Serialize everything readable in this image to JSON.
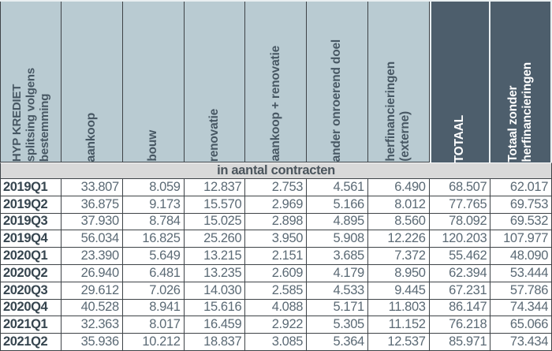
{
  "colors": {
    "header_bg": "#b9cbd2",
    "dark_bg": "#4d5e6c",
    "band_bg": "#d9d9d9",
    "border": "#3e4347",
    "num_text": "#5b6a75",
    "label_text": "#36454f",
    "header_text": "#475763"
  },
  "table": {
    "corner_header": "HYP KREDIET\nsplitsing volgens\nbestemming",
    "section_title": "in aantal contracten",
    "columns": [
      {
        "label": "aankoop",
        "dark": false
      },
      {
        "label": "bouw",
        "dark": false
      },
      {
        "label": "renovatie",
        "dark": false
      },
      {
        "label": "aankoop + renovatie",
        "dark": false
      },
      {
        "label": "ander onroerend doel",
        "dark": false
      },
      {
        "label": "herfinancieringen\n(externe)",
        "dark": false
      },
      {
        "label": "TOTAAL",
        "dark": true
      },
      {
        "label": "Totaal zonder\nherfinancieringen",
        "dark": true
      }
    ],
    "rows": [
      {
        "label": "2019Q1",
        "values": [
          "33.807",
          "8.059",
          "12.837",
          "2.753",
          "4.561",
          "6.490",
          "68.507",
          "62.017"
        ]
      },
      {
        "label": "2019Q2",
        "values": [
          "36.875",
          "9.173",
          "15.570",
          "2.969",
          "5.166",
          "8.012",
          "77.765",
          "69.753"
        ]
      },
      {
        "label": "2019Q3",
        "values": [
          "37.930",
          "8.784",
          "15.025",
          "2.898",
          "4.895",
          "8.560",
          "78.092",
          "69.532"
        ]
      },
      {
        "label": "2019Q4",
        "values": [
          "56.034",
          "16.825",
          "25.260",
          "3.950",
          "5.908",
          "12.226",
          "120.203",
          "107.977"
        ]
      },
      {
        "label": "2020Q1",
        "values": [
          "23.390",
          "5.649",
          "13.215",
          "2.151",
          "3.685",
          "7.372",
          "55.462",
          "48.090"
        ]
      },
      {
        "label": "2020Q2",
        "values": [
          "26.940",
          "6.481",
          "13.235",
          "2.609",
          "4.179",
          "8.950",
          "62.394",
          "53.444"
        ]
      },
      {
        "label": "2020Q3",
        "values": [
          "29.612",
          "7.026",
          "14.030",
          "2.585",
          "4.533",
          "9.445",
          "67.231",
          "57.786"
        ]
      },
      {
        "label": "2020Q4",
        "values": [
          "40.528",
          "8.941",
          "15.616",
          "4.088",
          "5.171",
          "11.803",
          "86.147",
          "74.344"
        ]
      },
      {
        "label": "2021Q1",
        "values": [
          "32.363",
          "8.017",
          "16.459",
          "2.922",
          "5.305",
          "11.152",
          "76.218",
          "65.066"
        ]
      },
      {
        "label": "2021Q2",
        "values": [
          "35.936",
          "10.212",
          "18.837",
          "3.085",
          "5.364",
          "12.537",
          "85.971",
          "73.434"
        ]
      }
    ]
  },
  "chart_data": {
    "type": "table",
    "title": "HYP KREDIET splitsing volgens bestemming — in aantal contracten",
    "categories": [
      "2019Q1",
      "2019Q2",
      "2019Q3",
      "2019Q4",
      "2020Q1",
      "2020Q2",
      "2020Q3",
      "2020Q4",
      "2021Q1",
      "2021Q2"
    ],
    "series": [
      {
        "name": "aankoop",
        "values": [
          33807,
          36875,
          37930,
          56034,
          23390,
          26940,
          29612,
          40528,
          32363,
          35936
        ]
      },
      {
        "name": "bouw",
        "values": [
          8059,
          9173,
          8784,
          16825,
          5649,
          6481,
          7026,
          8941,
          8017,
          10212
        ]
      },
      {
        "name": "renovatie",
        "values": [
          12837,
          15570,
          15025,
          25260,
          13215,
          13235,
          14030,
          15616,
          16459,
          18837
        ]
      },
      {
        "name": "aankoop + renovatie",
        "values": [
          2753,
          2969,
          2898,
          3950,
          2151,
          2609,
          2585,
          4088,
          2922,
          3085
        ]
      },
      {
        "name": "ander onroerend doel",
        "values": [
          4561,
          5166,
          4895,
          5908,
          3685,
          4179,
          4533,
          5171,
          5305,
          5364
        ]
      },
      {
        "name": "herfinancieringen (externe)",
        "values": [
          6490,
          8012,
          8560,
          12226,
          7372,
          8950,
          9445,
          11803,
          11152,
          12537
        ]
      },
      {
        "name": "TOTAAL",
        "values": [
          68507,
          77765,
          78092,
          120203,
          55462,
          62394,
          67231,
          86147,
          76218,
          85971
        ]
      },
      {
        "name": "Totaal zonder herfinancieringen",
        "values": [
          62017,
          69753,
          69532,
          107977,
          48090,
          53444,
          57786,
          74344,
          65066,
          73434
        ]
      }
    ]
  }
}
